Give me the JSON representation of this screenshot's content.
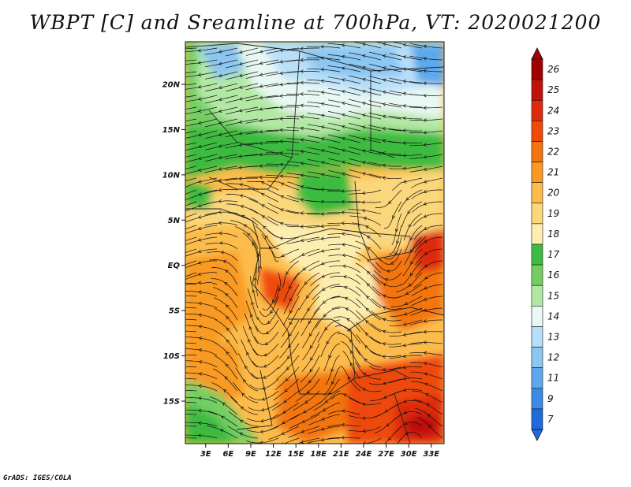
{
  "title": "WBPT [C] and Sreamline at 700hPa, VT: 2020021200",
  "footer": "GrADS: IGES/COLA",
  "map": {
    "lat_ticks": [
      "20N",
      "15N",
      "10N",
      "5N",
      "EQ",
      "5S",
      "10S",
      "15S"
    ],
    "lon_ticks": [
      "3E",
      "6E",
      "9E",
      "12E",
      "15E",
      "18E",
      "21E",
      "24E",
      "27E",
      "30E",
      "33E"
    ],
    "lat_values": [
      20,
      15,
      10,
      5,
      0,
      -5,
      -10,
      -15
    ],
    "lon_values": [
      3,
      6,
      9,
      12,
      15,
      18,
      21,
      24,
      27,
      30,
      33
    ],
    "lat_range": [
      -19.7,
      24.7
    ],
    "lon_range": [
      0.3,
      34.7
    ]
  },
  "colorbar": {
    "levels": [
      "26",
      "25",
      "24",
      "23",
      "22",
      "21",
      "20",
      "19",
      "18",
      "17",
      "16",
      "15",
      "14",
      "13",
      "12",
      "11",
      "9",
      "7"
    ],
    "colors": [
      "#a00000",
      "#c0110b",
      "#dd2a0c",
      "#ee4a08",
      "#f4740f",
      "#f99a22",
      "#fcbc4c",
      "#fbd77b",
      "#fdeeb0",
      "#3dbb41",
      "#73cf64",
      "#b3e8a4",
      "#e8f8f3",
      "#b8dff8",
      "#8cc6f2",
      "#5da8ec",
      "#3a8ae6",
      "#1f6bdc"
    ]
  }
}
